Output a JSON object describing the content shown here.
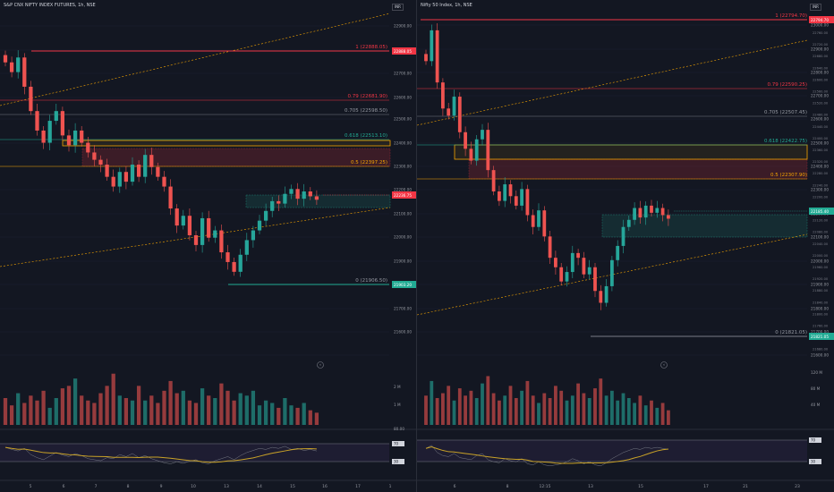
{
  "panes": [
    {
      "title": "S&P CNX NIFTY INDEX FUTURES, 1h, NSE",
      "tag": "INR",
      "price_axis": {
        "ticks": [
          "22900.00",
          "22800.00",
          "22700.00",
          "22600.00",
          "22500.00",
          "22400.00",
          "22300.00",
          "22200.00",
          "22100.00",
          "22000.00",
          "21900.00",
          "21800.00",
          "21700.00",
          "21600.00"
        ],
        "vol_ticks": [
          "2 M",
          "1 M"
        ],
        "rsi_ticks": [
          "80.00"
        ]
      },
      "time_axis": [
        "5",
        "6",
        "7",
        "8",
        "9",
        "10",
        "13",
        "14",
        "15",
        "16",
        "17",
        "1"
      ],
      "fib_labels": [
        {
          "text": "1 (22888.05)",
          "color": "#f23645"
        },
        {
          "text": "0.79 (22681.90)",
          "color": "#f23645"
        },
        {
          "text": "0.705 (22598.50)",
          "color": "#9598a1"
        },
        {
          "text": "0.618 (22513.10)",
          "color": "#22ab94"
        },
        {
          "text": "0.5 (22397.25)",
          "color": "#f7a600"
        },
        {
          "text": "0 (21906.50)",
          "color": "#9598a1"
        }
      ],
      "price_tags": [
        {
          "text": "22888.05",
          "color": "#f23645"
        },
        {
          "text": "22236.75",
          "color": "#f23645"
        },
        {
          "text": "21903.20",
          "color": "#22ab94"
        }
      ],
      "rsi_tags": [
        "70",
        "30"
      ],
      "marker": "⚡"
    },
    {
      "title": "Nifty 50 Index, 1h, NSE",
      "tag": "INR",
      "price_axis": {
        "ticks": [
          "23000.00",
          "22900.00",
          "22800.00",
          "22700.00",
          "22600.00",
          "22500.00",
          "22400.00",
          "22300.00",
          "22200.00",
          "22100.00",
          "22000.00",
          "21900.00",
          "21800.00",
          "21700.00",
          "21600.00"
        ],
        "right_ticks": [
          "22760.00",
          "22720.00",
          "22680.00",
          "22640.00",
          "22600.00",
          "22560.00",
          "22520.00",
          "22480.00",
          "22440.00",
          "22400.00",
          "22360.00",
          "22320.00",
          "22280.00",
          "22240.00",
          "22200.00",
          "22160.00",
          "22120.00",
          "22080.00",
          "22040.00",
          "22000.00",
          "21960.00",
          "21920.00",
          "21880.00",
          "21840.00",
          "21800.00",
          "21760.00",
          "21720.00",
          "21680.00"
        ],
        "vol_ticks": [
          "120 M",
          "80 M",
          "40 M"
        ]
      },
      "time_axis": [
        "6",
        "8",
        "12:15",
        "13",
        "15",
        "17",
        "21",
        "23"
      ],
      "fib_labels": [
        {
          "text": "1 (22794.70)",
          "color": "#f23645"
        },
        {
          "text": "0.79 (22590.25)",
          "color": "#f23645"
        },
        {
          "text": "0.705 (22507.45)",
          "color": "#9598a1"
        },
        {
          "text": "0.618 (22422.75)",
          "color": "#22ab94"
        },
        {
          "text": "0.5 (22307.90)",
          "color": "#f7a600"
        },
        {
          "text": "0 (21821.05)",
          "color": "#9598a1"
        }
      ],
      "price_tags": [
        {
          "text": "22794.70",
          "color": "#f23645"
        },
        {
          "text": "22185.40",
          "color": "#22ab94"
        },
        {
          "text": "21821.05",
          "color": "#22ab94"
        }
      ],
      "rsi_tags": [
        "70",
        "30"
      ],
      "marker": "⚡"
    }
  ],
  "chart_data": [
    {
      "type": "candlestick",
      "title": "S&P CNX NIFTY INDEX FUTURES, 1h, NSE",
      "ylim": [
        21550,
        22990
      ],
      "fib_levels": [
        22888.05,
        22681.9,
        22598.5,
        22513.1,
        22397.25,
        21906.5
      ],
      "close": [
        22800,
        22760,
        22820,
        22700,
        22600,
        22520,
        22470,
        22560,
        22600,
        22500,
        22460,
        22520,
        22470,
        22430,
        22400,
        22380,
        22330,
        22290,
        22350,
        22310,
        22380,
        22330,
        22420,
        22370,
        22330,
        22290,
        22200,
        22130,
        22170,
        22090,
        22050,
        22160,
        22080,
        22110,
        22020,
        21980,
        21940,
        22010,
        22070,
        22110,
        22150,
        22190,
        22230,
        22220,
        22260,
        22280,
        22240,
        22270,
        22250,
        22236
      ],
      "vol": [
        1.1,
        0.8,
        1.3,
        0.9,
        1.2,
        1.0,
        1.4,
        0.7,
        1.1,
        1.5,
        1.6,
        1.9,
        1.2,
        1.0,
        0.9,
        1.3,
        1.6,
        2.1,
        1.2,
        1.1,
        1.0,
        1.6,
        1.0,
        1.2,
        0.9,
        1.4,
        1.8,
        1.3,
        1.4,
        1.0,
        0.9,
        1.5,
        1.2,
        1.1,
        1.7,
        1.4,
        1.0,
        1.3,
        1.2,
        1.4,
        0.8,
        1.0,
        0.9,
        0.7,
        1.1,
        0.8,
        0.7,
        0.9,
        0.6,
        0.5
      ],
      "rsi": [
        62,
        58,
        55,
        60,
        48,
        42,
        38,
        45,
        52,
        47,
        44,
        50,
        46,
        40,
        38,
        36,
        42,
        40,
        48,
        44,
        50,
        42,
        46,
        40,
        36,
        32,
        30,
        34,
        31,
        35,
        38,
        32,
        30,
        36,
        40,
        44,
        38,
        46,
        52,
        56,
        60,
        58,
        62,
        60,
        64,
        58,
        60,
        56,
        58,
        55
      ]
    },
    {
      "type": "candlestick",
      "title": "Nifty 50 Index, 1h, NSE",
      "ylim": [
        21560,
        23040
      ],
      "fib_levels": [
        22794.7,
        22590.25,
        22507.45,
        22422.75,
        22307.9,
        21821.05
      ],
      "close": [
        22850,
        22980,
        22760,
        22650,
        22620,
        22700,
        22550,
        22480,
        22430,
        22520,
        22560,
        22390,
        22300,
        22260,
        22330,
        22280,
        22240,
        22310,
        22200,
        22150,
        22220,
        22110,
        22020,
        21980,
        21920,
        21960,
        22040,
        22020,
        21950,
        21980,
        21880,
        21830,
        21900,
        22010,
        22070,
        22150,
        22180,
        22230,
        22190,
        22240,
        22210,
        22230,
        22200,
        22185
      ],
      "vol": [
        1.2,
        1.8,
        1.1,
        1.3,
        1.6,
        1.0,
        1.5,
        1.2,
        1.4,
        1.1,
        1.7,
        2.0,
        1.3,
        1.0,
        1.2,
        1.6,
        1.1,
        1.4,
        1.8,
        1.2,
        0.9,
        1.3,
        1.1,
        1.6,
        1.4,
        1.0,
        1.2,
        1.7,
        1.3,
        1.1,
        1.5,
        1.9,
        1.2,
        1.4,
        1.0,
        1.3,
        1.1,
        0.9,
        1.2,
        0.8,
        1.0,
        0.7,
        0.9,
        0.6
      ],
      "rsi": [
        60,
        66,
        52,
        46,
        44,
        50,
        42,
        40,
        38,
        46,
        50,
        38,
        34,
        32,
        40,
        36,
        34,
        40,
        30,
        28,
        34,
        28,
        26,
        28,
        30,
        34,
        40,
        36,
        30,
        34,
        28,
        26,
        32,
        40,
        46,
        52,
        56,
        60,
        58,
        62,
        60,
        62,
        60,
        58
      ]
    }
  ]
}
